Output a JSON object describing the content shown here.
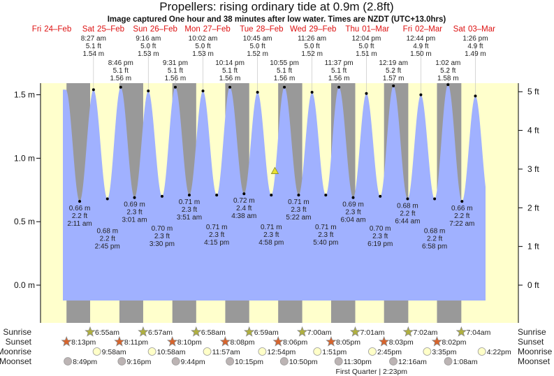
{
  "chart_data": {
    "type": "area",
    "title": "Propellers: rising  ordinary tide at 0.9m (2.8ft)",
    "subtitle": "Image captured One hour and 38 minutes after low water. Times are NZDT (UTC+13.0hrs)",
    "y_left": {
      "ticks": [
        "0.0 m",
        "0.5 m",
        "1.0 m",
        "1.5 m"
      ],
      "values": [
        0,
        0.5,
        1.0,
        1.5
      ],
      "unit": "m"
    },
    "y_right": {
      "ticks": [
        "0 ft",
        "1 ft",
        "2 ft",
        "3 ft",
        "4 ft",
        "5 ft"
      ],
      "values": [
        0,
        1,
        2,
        3,
        4,
        5
      ],
      "unit": "ft"
    },
    "ylim_m": [
      -0.2,
      1.6
    ],
    "days": [
      {
        "name": "Fri",
        "date": "24–Feb"
      },
      {
        "name": "Sat",
        "date": "25–Feb"
      },
      {
        "name": "Sun",
        "date": "26–Feb"
      },
      {
        "name": "Mon",
        "date": "27–Feb"
      },
      {
        "name": "Tue",
        "date": "28–Feb"
      },
      {
        "name": "Wed",
        "date": "29–Feb"
      },
      {
        "name": "Thu",
        "date": "01–Mar"
      },
      {
        "name": "Fri",
        "date": "02–Mar"
      },
      {
        "name": "Sat",
        "date": "03–Mar"
      }
    ],
    "high_tides": [
      {
        "day": 1,
        "time": "8:27 am",
        "ft": "5.1 ft",
        "m": "1.54 m",
        "h": 1.54
      },
      {
        "day": 1,
        "time": "8:46 pm",
        "ft": "5.1 ft",
        "m": "1.56 m",
        "h": 1.56
      },
      {
        "day": 2,
        "time": "9:16 am",
        "ft": "5.0 ft",
        "m": "1.53 m",
        "h": 1.53
      },
      {
        "day": 2,
        "time": "9:31 pm",
        "ft": "5.1 ft",
        "m": "1.56 m",
        "h": 1.56
      },
      {
        "day": 3,
        "time": "10:02 am",
        "ft": "5.0 ft",
        "m": "1.53 m",
        "h": 1.53
      },
      {
        "day": 3,
        "time": "10:14 pm",
        "ft": "5.1 ft",
        "m": "1.56 m",
        "h": 1.56
      },
      {
        "day": 4,
        "time": "10:45 am",
        "ft": "5.0 ft",
        "m": "1.52 m",
        "h": 1.52
      },
      {
        "day": 4,
        "time": "10:55 pm",
        "ft": "5.1 ft",
        "m": "1.56 m",
        "h": 1.56
      },
      {
        "day": 5,
        "time": "11:26 am",
        "ft": "5.0 ft",
        "m": "1.52 m",
        "h": 1.52
      },
      {
        "day": 5,
        "time": "11:37 pm",
        "ft": "5.1 ft",
        "m": "1.56 m",
        "h": 1.56
      },
      {
        "day": 6,
        "time": "12:04 pm",
        "ft": "5.0 ft",
        "m": "1.51 m",
        "h": 1.51
      },
      {
        "day": 7,
        "time": "12:19 am",
        "ft": "5.2 ft",
        "m": "1.57 m",
        "h": 1.57
      },
      {
        "day": 7,
        "time": "12:44 pm",
        "ft": "4.9 ft",
        "m": "1.50 m",
        "h": 1.5
      },
      {
        "day": 8,
        "time": "1:02 am",
        "ft": "5.2 ft",
        "m": "1.58 m",
        "h": 1.58
      },
      {
        "day": 8,
        "time": "1:26 pm",
        "ft": "4.9 ft",
        "m": "1.49 m",
        "h": 1.49
      }
    ],
    "low_tides": [
      {
        "day": 1,
        "time": "2:11 am",
        "ft": "2.2 ft",
        "m": "0.66 m",
        "h": 0.66
      },
      {
        "day": 1,
        "time": "2:45 pm",
        "ft": "2.2 ft",
        "m": "0.68 m",
        "h": 0.68
      },
      {
        "day": 2,
        "time": "3:01 am",
        "ft": "2.3 ft",
        "m": "0.69 m",
        "h": 0.69
      },
      {
        "day": 2,
        "time": "3:30 pm",
        "ft": "2.3 ft",
        "m": "0.70 m",
        "h": 0.7
      },
      {
        "day": 3,
        "time": "3:51 am",
        "ft": "2.3 ft",
        "m": "0.71 m",
        "h": 0.71
      },
      {
        "day": 3,
        "time": "4:15 pm",
        "ft": "2.3 ft",
        "m": "0.71 m",
        "h": 0.71
      },
      {
        "day": 4,
        "time": "4:38 am",
        "ft": "2.4 ft",
        "m": "0.72 m",
        "h": 0.72
      },
      {
        "day": 4,
        "time": "4:58 pm",
        "ft": "2.3 ft",
        "m": "0.71 m",
        "h": 0.71
      },
      {
        "day": 5,
        "time": "5:22 am",
        "ft": "2.3 ft",
        "m": "0.71 m",
        "h": 0.71
      },
      {
        "day": 5,
        "time": "5:40 pm",
        "ft": "2.3 ft",
        "m": "0.71 m",
        "h": 0.71
      },
      {
        "day": 6,
        "time": "6:04 am",
        "ft": "2.3 ft",
        "m": "0.69 m",
        "h": 0.69
      },
      {
        "day": 6,
        "time": "6:19 pm",
        "ft": "2.3 ft",
        "m": "0.70 m",
        "h": 0.7
      },
      {
        "day": 7,
        "time": "6:44 am",
        "ft": "2.2 ft",
        "m": "0.68 m",
        "h": 0.68
      },
      {
        "day": 7,
        "time": "6:58 pm",
        "ft": "2.2 ft",
        "m": "0.68 m",
        "h": 0.68
      },
      {
        "day": 8,
        "time": "7:22 am",
        "ft": "2.2 ft",
        "m": "0.66 m",
        "h": 0.66
      }
    ],
    "current": {
      "day": 4,
      "time": "6:36 pm",
      "h": 0.9
    },
    "rows": {
      "sunrise": {
        "label": "Sunrise",
        "events": [
          {
            "day": 1,
            "time": "6:55am"
          },
          {
            "day": 2,
            "time": "6:57am"
          },
          {
            "day": 3,
            "time": "6:58am"
          },
          {
            "day": 4,
            "time": "6:59am"
          },
          {
            "day": 5,
            "time": "7:00am"
          },
          {
            "day": 6,
            "time": "7:01am"
          },
          {
            "day": 7,
            "time": "7:02am"
          },
          {
            "day": 8,
            "time": "7:04am"
          }
        ]
      },
      "sunset": {
        "label": "Sunset",
        "events": [
          {
            "day": 0,
            "time": "8:13pm"
          },
          {
            "day": 1,
            "time": "8:11pm"
          },
          {
            "day": 2,
            "time": "8:10pm"
          },
          {
            "day": 3,
            "time": "8:08pm"
          },
          {
            "day": 4,
            "time": "8:06pm"
          },
          {
            "day": 5,
            "time": "8:05pm"
          },
          {
            "day": 6,
            "time": "8:03pm"
          },
          {
            "day": 7,
            "time": "8:02pm"
          }
        ]
      },
      "moonrise": {
        "label": "Moonrise",
        "events": [
          {
            "day": 1,
            "time": "9:58am"
          },
          {
            "day": 2,
            "time": "10:58am"
          },
          {
            "day": 3,
            "time": "11:57am"
          },
          {
            "day": 4,
            "time": "12:54pm"
          },
          {
            "day": 5,
            "time": "1:51pm"
          },
          {
            "day": 6,
            "time": "2:45pm"
          },
          {
            "day": 7,
            "time": "3:35pm"
          },
          {
            "day": 8,
            "time": "4:22pm"
          }
        ]
      },
      "moonset": {
        "label": "Moonset",
        "events": [
          {
            "day": 0,
            "time": "8:49pm"
          },
          {
            "day": 1,
            "time": "9:16pm"
          },
          {
            "day": 2,
            "time": "9:44pm"
          },
          {
            "day": 3,
            "time": "10:15pm"
          },
          {
            "day": 4,
            "time": "10:50pm"
          },
          {
            "day": 5,
            "time": "11:30pm"
          },
          {
            "day": 7,
            "time": "12:16am"
          },
          {
            "day": 8,
            "time": "1:08am"
          }
        ]
      }
    },
    "moon_phase": {
      "day": 6,
      "time": "2:23pm",
      "label": "First Quarter | 2:23pm"
    },
    "colors": {
      "water": "#a0b1ff",
      "night": "#999999",
      "day": "#ffffcc",
      "day_label": "#dd1111",
      "sunrise": "#b0b040",
      "sunset": "#d8642c",
      "moonrise": "#ffffc8",
      "moonset": "#bcb4b4"
    }
  }
}
